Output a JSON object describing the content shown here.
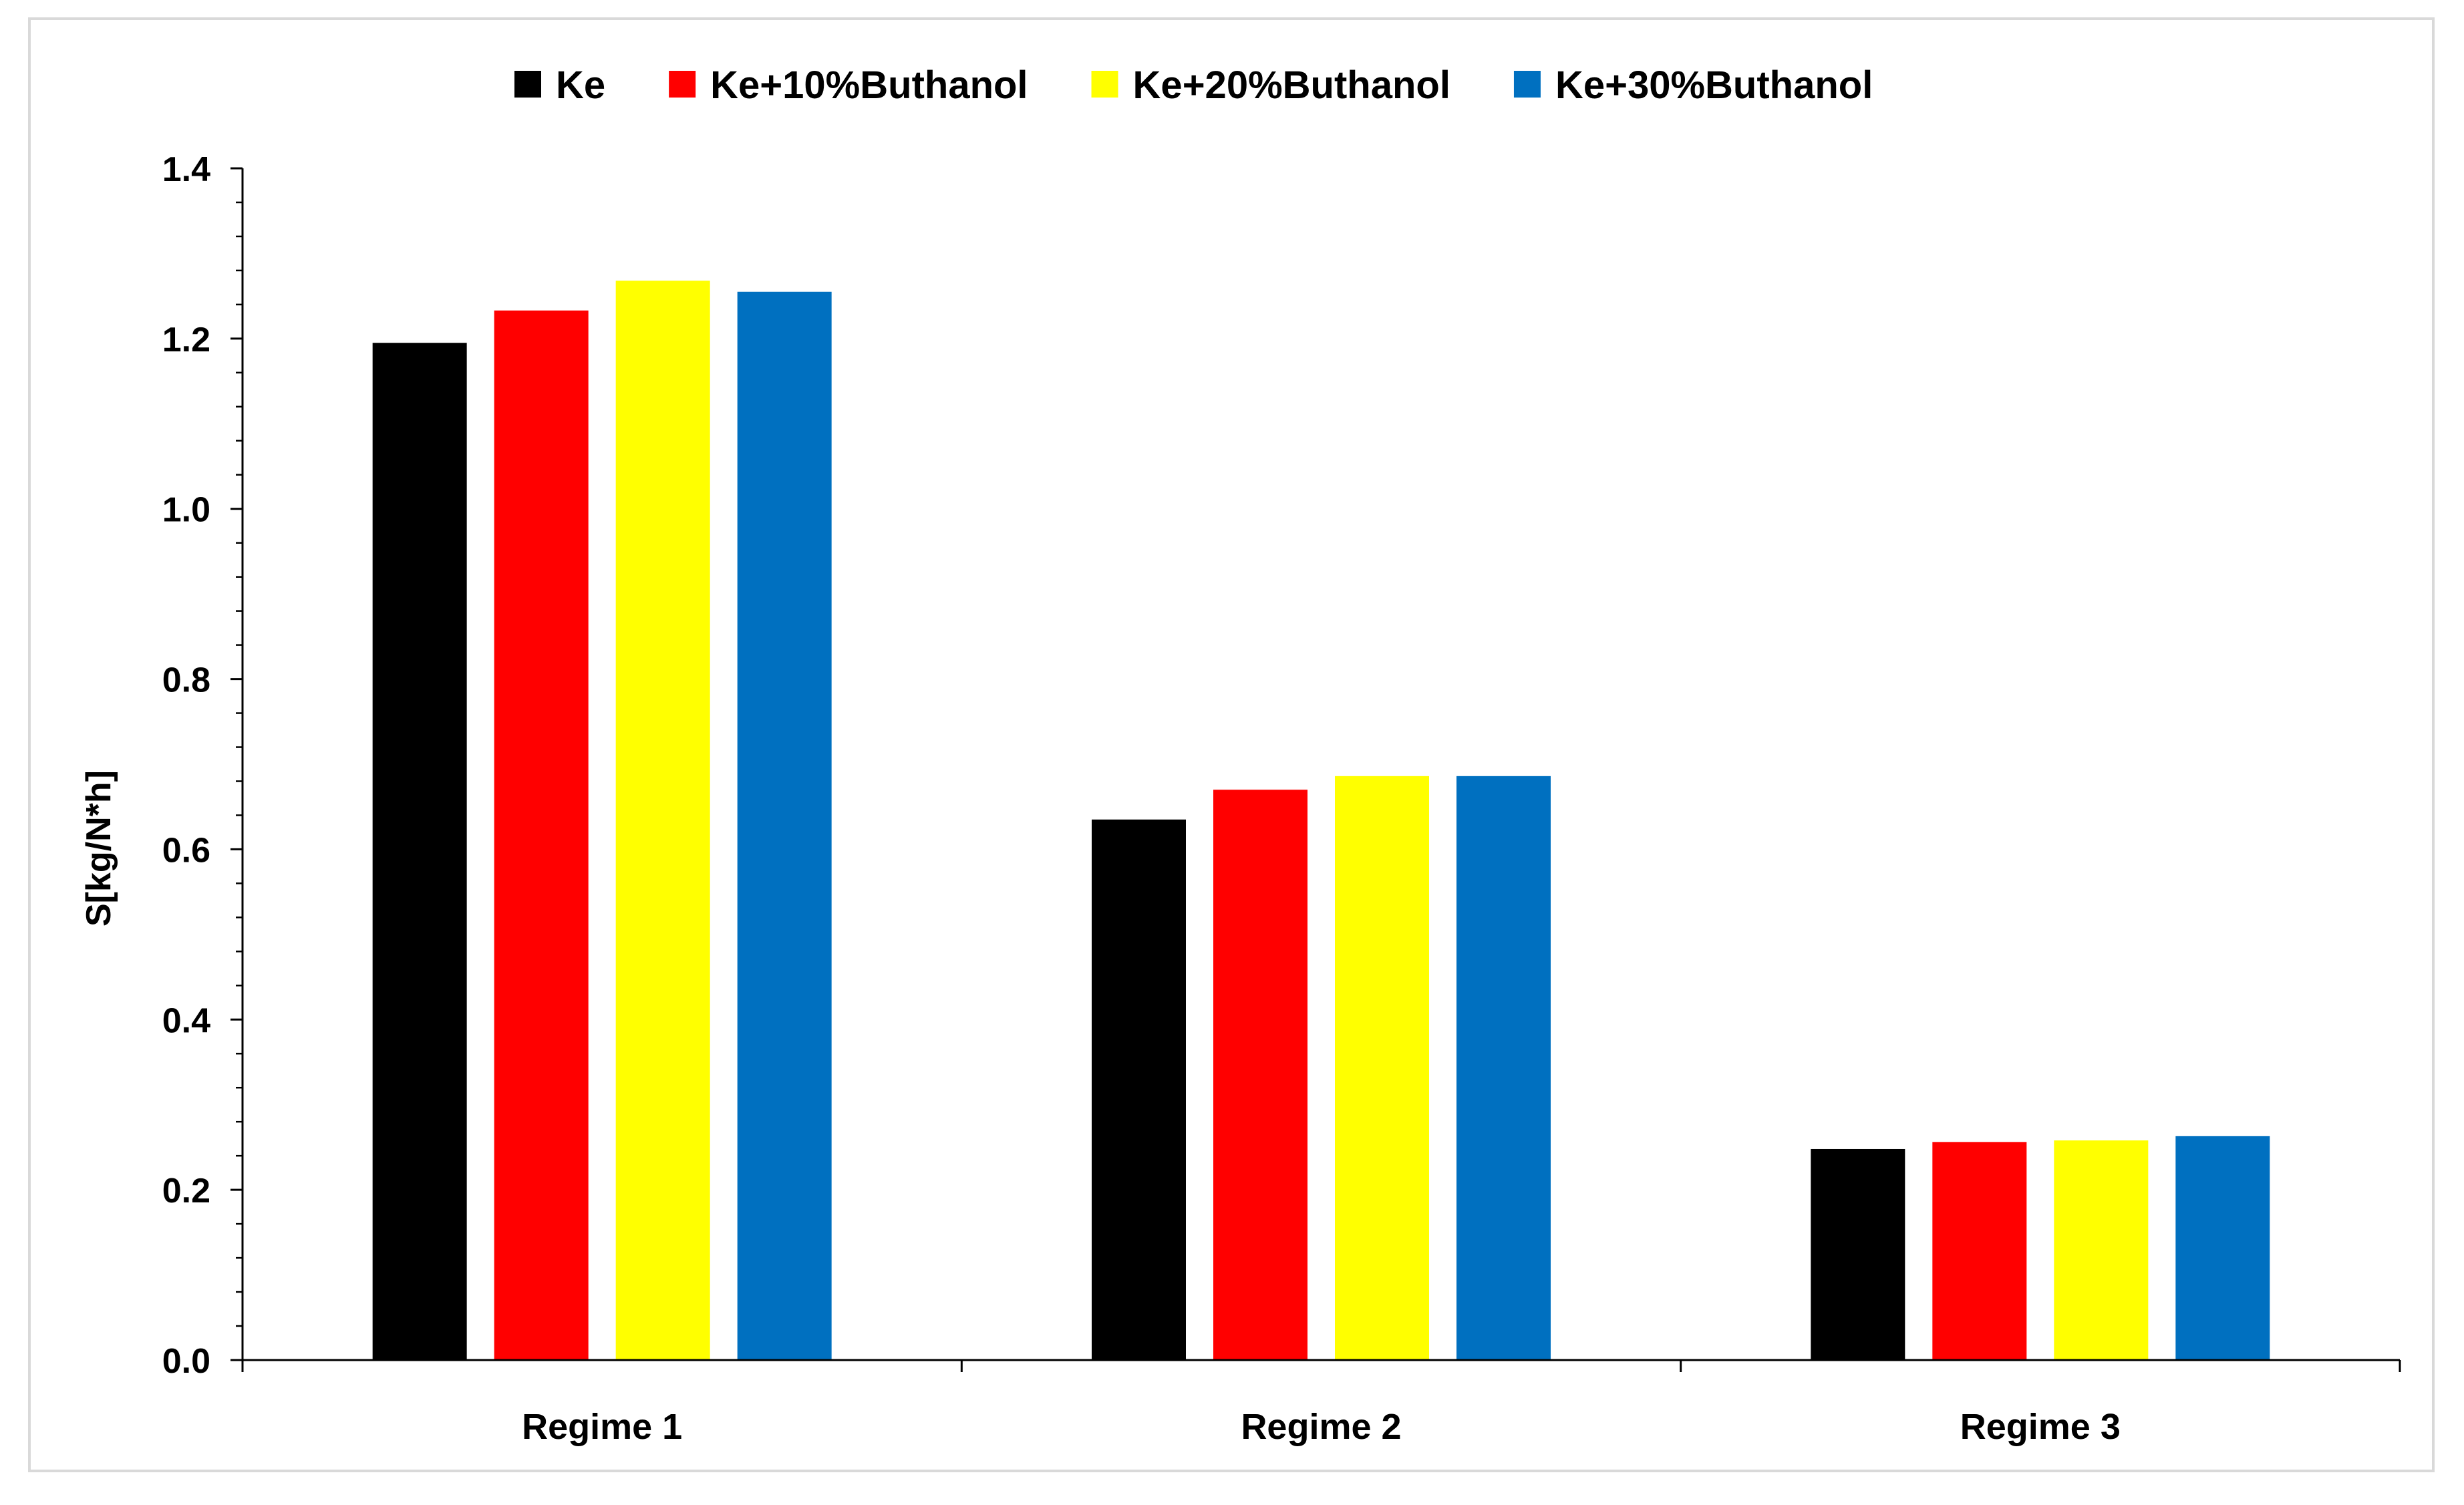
{
  "chart_data": {
    "type": "bar",
    "title": "",
    "xlabel": "",
    "ylabel": "S[kg/N*h]",
    "categories": [
      "Regime 1",
      "Regime 2",
      "Regime 3"
    ],
    "ylim": [
      0,
      1.4
    ],
    "yticks": [
      "0.0",
      "0.2",
      "0.4",
      "0.6",
      "0.8",
      "1.0",
      "1.2",
      "1.4"
    ],
    "grid": false,
    "legend_position": "top",
    "series": [
      {
        "name": "Ke",
        "color": "#000000",
        "values": [
          1.195,
          0.635,
          0.248
        ]
      },
      {
        "name": "Ke+10%Buthanol",
        "color": "#ff0000",
        "values": [
          1.233,
          0.67,
          0.256
        ]
      },
      {
        "name": "Ke+20%Buthanol",
        "color": "#ffff00",
        "values": [
          1.268,
          0.686,
          0.258
        ]
      },
      {
        "name": "Ke+30%Buthanol",
        "color": "#0070c0",
        "values": [
          1.255,
          0.686,
          0.263
        ]
      }
    ]
  }
}
